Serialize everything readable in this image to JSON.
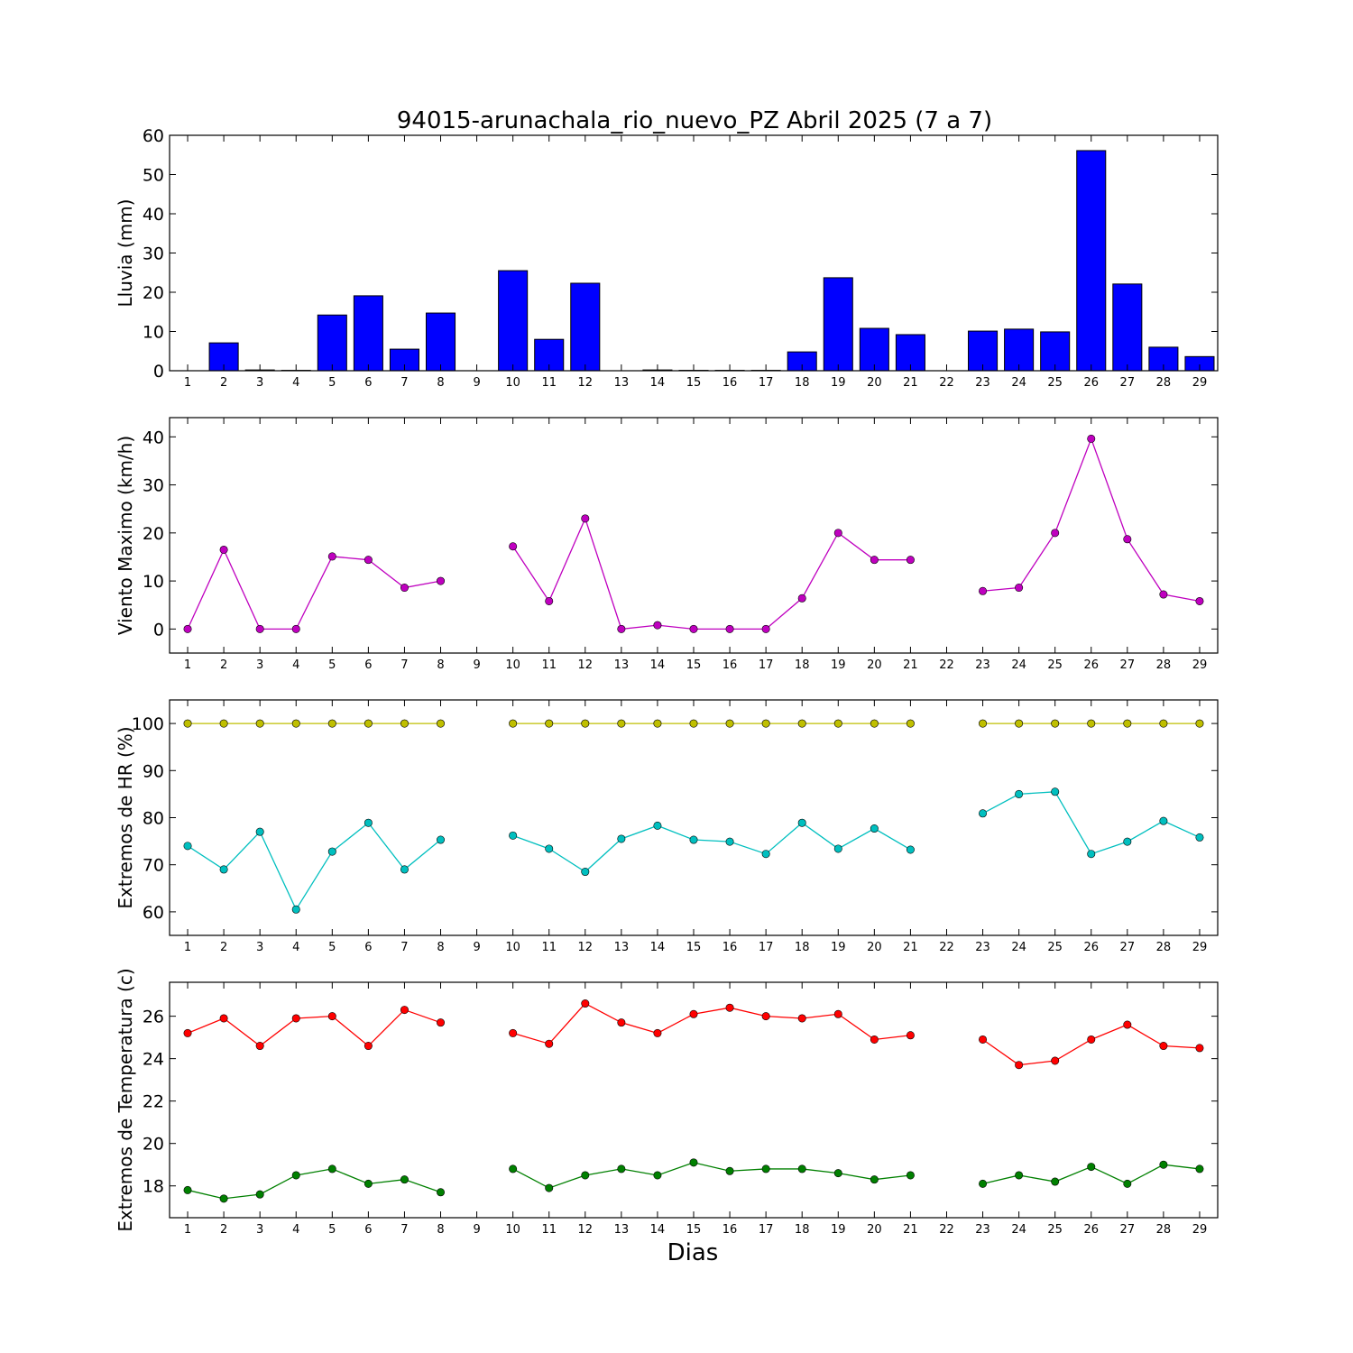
{
  "title": "94015-arunachala_rio_nuevo_PZ Abril 2025  (7 a 7)",
  "xlabel": "Dias",
  "x_ticks": [
    1,
    2,
    3,
    4,
    5,
    6,
    7,
    8,
    9,
    10,
    11,
    12,
    13,
    14,
    15,
    16,
    17,
    18,
    19,
    20,
    21,
    22,
    23,
    24,
    25,
    26,
    27,
    28,
    29
  ],
  "chart_data": [
    {
      "type": "bar",
      "ylabel": "Lluvia (mm)",
      "ylim": [
        0,
        60
      ],
      "yticks": [
        0,
        10,
        20,
        30,
        40,
        50,
        60
      ],
      "xlim": [
        0.5,
        29.5
      ],
      "categories": [
        1,
        2,
        3,
        4,
        5,
        6,
        7,
        8,
        9,
        10,
        11,
        12,
        13,
        14,
        15,
        16,
        17,
        18,
        19,
        20,
        21,
        22,
        23,
        24,
        25,
        26,
        27,
        28,
        29
      ],
      "series": [
        {
          "color": "#0000ff",
          "values": [
            0,
            7.1,
            0.2,
            0.1,
            14.2,
            19.1,
            5.5,
            14.7,
            0,
            25.5,
            8,
            22.3,
            0,
            0.2,
            0.1,
            0.1,
            0.1,
            4.8,
            23.7,
            10.8,
            9.2,
            0,
            10.1,
            10.6,
            9.9,
            56.1,
            22.1,
            6,
            3.6
          ]
        }
      ],
      "grid": false
    },
    {
      "type": "line",
      "ylabel": "Viento Maximo (km/h)",
      "ylim": [
        -5,
        44
      ],
      "yticks": [
        0,
        10,
        20,
        30,
        40
      ],
      "xlim": [
        0.5,
        29.5
      ],
      "x": [
        1,
        2,
        3,
        4,
        5,
        6,
        7,
        8,
        9,
        10,
        11,
        12,
        13,
        14,
        15,
        16,
        17,
        18,
        19,
        20,
        21,
        22,
        23,
        24,
        25,
        26,
        27,
        28,
        29
      ],
      "series": [
        {
          "color": "#bf00bf",
          "values": [
            0,
            16.5,
            0,
            0,
            15.1,
            14.4,
            8.6,
            10,
            null,
            17.2,
            5.8,
            23,
            0,
            0.8,
            0,
            0,
            0,
            6.4,
            20,
            14.4,
            14.4,
            null,
            7.9,
            8.6,
            20,
            39.6,
            18.7,
            7.2,
            5.8
          ]
        }
      ],
      "grid": false
    },
    {
      "type": "line",
      "ylabel": "Extremos de HR (%)",
      "ylim": [
        55,
        105
      ],
      "yticks": [
        60,
        70,
        80,
        90,
        100
      ],
      "xlim": [
        0.5,
        29.5
      ],
      "x": [
        1,
        2,
        3,
        4,
        5,
        6,
        7,
        8,
        9,
        10,
        11,
        12,
        13,
        14,
        15,
        16,
        17,
        18,
        19,
        20,
        21,
        22,
        23,
        24,
        25,
        26,
        27,
        28,
        29
      ],
      "series": [
        {
          "color": "#bfbf00",
          "values": [
            100,
            100,
            100,
            100,
            100,
            100,
            100,
            100,
            null,
            100,
            100,
            100,
            100,
            100,
            100,
            100,
            100,
            100,
            100,
            100,
            100,
            null,
            100,
            100,
            100,
            100,
            100,
            100,
            100
          ]
        },
        {
          "color": "#00bfbf",
          "values": [
            74,
            69,
            77,
            60.5,
            72.8,
            78.9,
            69,
            75.3,
            null,
            76.2,
            73.4,
            68.5,
            75.5,
            78.3,
            75.3,
            74.9,
            72.3,
            78.9,
            73.4,
            77.7,
            73.2,
            null,
            80.9,
            85,
            85.5,
            72.3,
            74.9,
            79.3,
            75.8
          ]
        }
      ],
      "grid": false
    },
    {
      "type": "line",
      "ylabel": "Extremos de Temperatura (c)",
      "ylim": [
        16.5,
        27.6
      ],
      "yticks": [
        18,
        20,
        22,
        24,
        26
      ],
      "xlim": [
        0.5,
        29.5
      ],
      "x": [
        1,
        2,
        3,
        4,
        5,
        6,
        7,
        8,
        9,
        10,
        11,
        12,
        13,
        14,
        15,
        16,
        17,
        18,
        19,
        20,
        21,
        22,
        23,
        24,
        25,
        26,
        27,
        28,
        29
      ],
      "series": [
        {
          "color": "#ff0000",
          "values": [
            25.2,
            25.9,
            24.6,
            25.9,
            26,
            24.6,
            26.3,
            25.7,
            null,
            25.2,
            24.7,
            26.6,
            25.7,
            25.2,
            26.1,
            26.4,
            26,
            25.9,
            26.1,
            24.9,
            25.1,
            null,
            24.9,
            23.7,
            23.9,
            24.9,
            25.6,
            24.6,
            24.5
          ]
        },
        {
          "color": "#008000",
          "values": [
            17.8,
            17.4,
            17.6,
            18.5,
            18.8,
            18.1,
            18.3,
            17.7,
            null,
            18.8,
            17.9,
            18.5,
            18.8,
            18.5,
            19.1,
            18.7,
            18.8,
            18.8,
            18.6,
            18.3,
            18.5,
            null,
            18.1,
            18.5,
            18.2,
            18.9,
            18.1,
            19,
            18.8
          ]
        }
      ],
      "grid": false
    }
  ]
}
